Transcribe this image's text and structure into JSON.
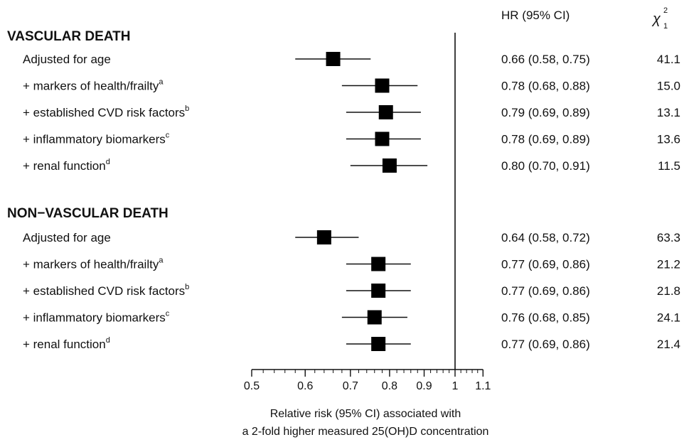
{
  "chart_data": {
    "type": "forest",
    "scale": "log",
    "xlim": [
      0.5,
      1.1
    ],
    "xticks": [
      "0.5",
      "0.6",
      "0.7",
      "0.8",
      "0.9",
      "1",
      "1.1"
    ],
    "reference_line": 1,
    "xlabel_line1": "Relative risk (95% CI) associated with",
    "xlabel_line2": "a 2-fold higher measured 25(OH)D concentration",
    "column_headers": {
      "hr": "HR (95% CI)",
      "chi": "χ",
      "chi_sup": "2",
      "chi_sub": "1"
    },
    "groups": [
      {
        "title": "VASCULAR DEATH",
        "rows": [
          {
            "label": "Adjusted for age",
            "sup": "",
            "hr": 0.66,
            "lo": 0.58,
            "hi": 0.75,
            "hr_text": "0.66 (0.58, 0.75)",
            "chi": "41.1"
          },
          {
            "label": "+ markers of health/frailty",
            "sup": "a",
            "hr": 0.78,
            "lo": 0.68,
            "hi": 0.88,
            "hr_text": "0.78 (0.68, 0.88)",
            "chi": "15.0"
          },
          {
            "label": "+ established CVD risk factors",
            "sup": "b",
            "hr": 0.79,
            "lo": 0.69,
            "hi": 0.89,
            "hr_text": "0.79 (0.69, 0.89)",
            "chi": "13.1"
          },
          {
            "label": "+ inflammatory biomarkers",
            "sup": "c",
            "hr": 0.78,
            "lo": 0.69,
            "hi": 0.89,
            "hr_text": "0.78 (0.69, 0.89)",
            "chi": "13.6"
          },
          {
            "label": "+ renal function",
            "sup": "d",
            "hr": 0.8,
            "lo": 0.7,
            "hi": 0.91,
            "hr_text": "0.80 (0.70, 0.91)",
            "chi": "11.5"
          }
        ]
      },
      {
        "title": "NON−VASCULAR DEATH",
        "rows": [
          {
            "label": "Adjusted for age",
            "sup": "",
            "hr": 0.64,
            "lo": 0.58,
            "hi": 0.72,
            "hr_text": "0.64 (0.58, 0.72)",
            "chi": "63.3"
          },
          {
            "label": "+ markers of health/frailty",
            "sup": "a",
            "hr": 0.77,
            "lo": 0.69,
            "hi": 0.86,
            "hr_text": "0.77 (0.69, 0.86)",
            "chi": "21.2"
          },
          {
            "label": "+ established CVD risk factors",
            "sup": "b",
            "hr": 0.77,
            "lo": 0.69,
            "hi": 0.86,
            "hr_text": "0.77 (0.69, 0.86)",
            "chi": "21.8"
          },
          {
            "label": "+ inflammatory biomarkers",
            "sup": "c",
            "hr": 0.76,
            "lo": 0.68,
            "hi": 0.85,
            "hr_text": "0.76 (0.68, 0.85)",
            "chi": "24.1"
          },
          {
            "label": "+ renal function",
            "sup": "d",
            "hr": 0.77,
            "lo": 0.69,
            "hi": 0.86,
            "hr_text": "0.77 (0.69, 0.86)",
            "chi": "21.4"
          }
        ]
      }
    ]
  }
}
